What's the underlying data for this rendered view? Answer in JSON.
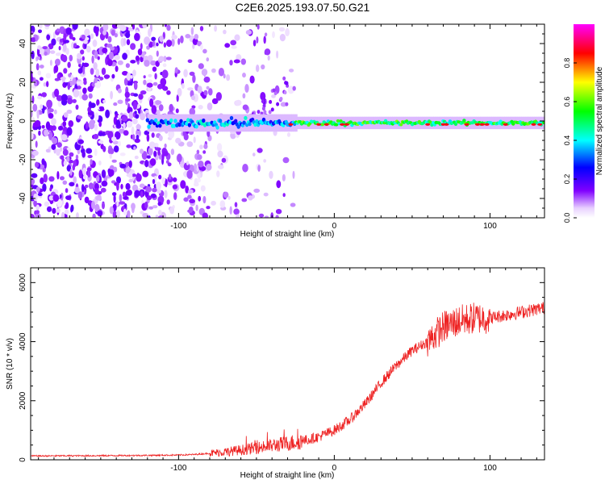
{
  "title": "C2E6.2025.193.07.50.G21",
  "chart_data": [
    {
      "type": "heatmap",
      "xlabel": "Height of straight line (km)",
      "ylabel": "Frequency (Hz)",
      "xlim": [
        -195,
        135
      ],
      "ylim": [
        -50,
        50
      ],
      "x_ticks": [
        -100,
        0,
        100
      ],
      "y_ticks": [
        -40,
        -20,
        0,
        20,
        40
      ],
      "colorbar": {
        "label": "Normalized spectral amplitude",
        "range": [
          0,
          1
        ],
        "ticks": [
          0.0,
          0.2,
          0.4,
          0.6,
          0.8
        ],
        "colormap": [
          "#ffffff",
          "#8000ff",
          "#0000ff",
          "#00ffff",
          "#00ff00",
          "#ffff00",
          "#ff0000",
          "#ff00ff"
        ]
      },
      "features": [
        {
          "name": "noise region",
          "x_range": [
            -195,
            -30
          ],
          "amplitude": "scattered 0.1-0.3"
        },
        {
          "name": "signal band",
          "x_range": [
            -120,
            135
          ],
          "frequency": -1,
          "amplitude": "0.3-0.9 increasing with height"
        }
      ]
    },
    {
      "type": "line",
      "xlabel": "Height of straight line (km)",
      "ylabel": "SNR (10 * v/v)",
      "xlim": [
        -195,
        135
      ],
      "ylim": [
        0,
        6500
      ],
      "x_ticks": [
        -100,
        0,
        100
      ],
      "y_ticks": [
        0,
        2000,
        4000,
        6000
      ],
      "color": "#ee2222",
      "series": [
        {
          "x": [
            -195,
            -150,
            -120,
            -100,
            -90,
            -80,
            -70,
            -60,
            -50,
            -40,
            -30,
            -20,
            -10,
            0,
            10,
            20,
            30,
            40,
            50,
            60,
            70,
            80,
            90,
            100,
            110,
            120,
            135
          ],
          "values": [
            130,
            140,
            150,
            160,
            180,
            220,
            270,
            330,
            400,
            480,
            560,
            640,
            780,
            1000,
            1350,
            1900,
            2600,
            3200,
            3700,
            4000,
            4500,
            4700,
            4800,
            4800,
            4900,
            5000,
            5150
          ]
        }
      ]
    }
  ]
}
